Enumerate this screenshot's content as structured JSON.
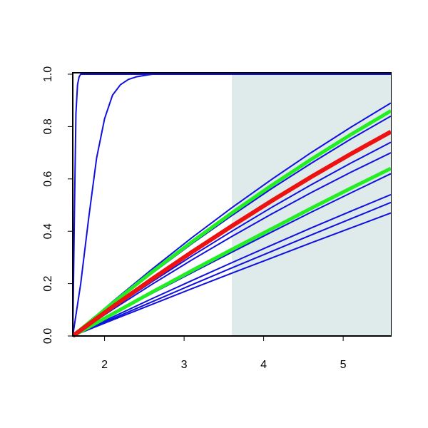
{
  "chart_data": {
    "type": "line",
    "xlim": [
      1.6,
      5.6
    ],
    "ylim": [
      0,
      1
    ],
    "xticks": [
      2,
      3,
      4,
      5
    ],
    "yticks": [
      {
        "value": 0,
        "label": "0.0"
      },
      {
        "value": 0.2,
        "label": "0.2"
      },
      {
        "value": 0.4,
        "label": "0.4"
      },
      {
        "value": 0.6,
        "label": "0.6"
      },
      {
        "value": 0.8,
        "label": "0.8"
      },
      {
        "value": 1,
        "label": "1.0"
      }
    ],
    "shaded_xrange": [
      3.6,
      5.6
    ],
    "shade_color": "#dfeaea",
    "series": [
      {
        "color": "#1010e0",
        "width": 2,
        "x": [
          1.6,
          1.62,
          1.64,
          1.66,
          1.68,
          1.7,
          1.75,
          1.8,
          5.6
        ],
        "values": [
          0,
          0.45,
          0.85,
          0.96,
          0.99,
          1.0,
          1.0,
          1.0,
          1.0
        ]
      },
      {
        "color": "#1010e0",
        "width": 2,
        "x": [
          1.6,
          1.7,
          1.8,
          1.9,
          2.0,
          2.1,
          2.2,
          2.3,
          2.4,
          2.6,
          2.8,
          5.6
        ],
        "values": [
          0,
          0.2,
          0.45,
          0.68,
          0.83,
          0.92,
          0.96,
          0.98,
          0.99,
          1.0,
          1.0,
          1.0
        ]
      },
      {
        "color": "#1010e0",
        "width": 2,
        "x": [
          1.6,
          2.1,
          2.6,
          3.1,
          3.6,
          4.1,
          4.6,
          5.1,
          5.6
        ],
        "values": [
          0,
          0.131,
          0.256,
          0.376,
          0.49,
          0.598,
          0.701,
          0.798,
          0.89
        ]
      },
      {
        "color": "#1010e0",
        "width": 2,
        "x": [
          1.6,
          2.1,
          2.6,
          3.1,
          3.6,
          4.1,
          4.6,
          5.1,
          5.6
        ],
        "values": [
          0,
          0.123,
          0.24,
          0.353,
          0.46,
          0.563,
          0.66,
          0.753,
          0.84
        ]
      },
      {
        "color": "#1010e0",
        "width": 2,
        "x": [
          1.6,
          2.1,
          2.6,
          3.1,
          3.6,
          4.1,
          4.6,
          5.1,
          5.6
        ],
        "values": [
          0,
          0.106,
          0.208,
          0.306,
          0.4,
          0.491,
          0.578,
          0.661,
          0.74
        ]
      },
      {
        "color": "#1010e0",
        "width": 2,
        "x": [
          1.6,
          2.1,
          2.6,
          3.1,
          3.6,
          4.1,
          4.6,
          5.1,
          5.6
        ],
        "values": [
          0,
          0.101,
          0.198,
          0.291,
          0.38,
          0.466,
          0.548,
          0.626,
          0.7
        ]
      },
      {
        "color": "#1010e0",
        "width": 2,
        "x": [
          1.6,
          2.1,
          2.6,
          3.1,
          3.6,
          4.1,
          4.6,
          5.1,
          5.6
        ],
        "values": [
          0,
          0.082,
          0.163,
          0.242,
          0.32,
          0.397,
          0.473,
          0.547,
          0.62
        ]
      },
      {
        "color": "#1010e0",
        "width": 2,
        "x": [
          1.6,
          2.1,
          2.6,
          3.1,
          3.6,
          4.1,
          4.6,
          5.1,
          5.6
        ],
        "values": [
          0,
          0.072,
          0.143,
          0.212,
          0.28,
          0.347,
          0.413,
          0.477,
          0.54
        ]
      },
      {
        "color": "#1010e0",
        "width": 2,
        "x": [
          1.6,
          2.1,
          2.6,
          3.1,
          3.6,
          4.1,
          4.6,
          5.1,
          5.6
        ],
        "values": [
          0,
          0.066,
          0.131,
          0.196,
          0.26,
          0.323,
          0.386,
          0.448,
          0.51
        ]
      },
      {
        "color": "#1010e0",
        "width": 2,
        "x": [
          1.6,
          2.1,
          2.6,
          3.1,
          3.6,
          4.1,
          4.6,
          5.1,
          5.6
        ],
        "values": [
          0,
          0.061,
          0.121,
          0.181,
          0.24,
          0.298,
          0.356,
          0.413,
          0.47
        ]
      },
      {
        "color": "#22ee22",
        "width": 5,
        "x": [
          1.6,
          2.1,
          2.6,
          3.1,
          3.6,
          4.1,
          4.6,
          5.1,
          5.6
        ],
        "values": [
          0,
          0.125,
          0.245,
          0.36,
          0.47,
          0.575,
          0.675,
          0.77,
          0.86
        ]
      },
      {
        "color": "#22ee22",
        "width": 5,
        "x": [
          1.6,
          2.1,
          2.6,
          3.1,
          3.6,
          4.1,
          4.6,
          5.1,
          5.6
        ],
        "values": [
          0,
          0.084,
          0.168,
          0.25,
          0.33,
          0.409,
          0.488,
          0.565,
          0.64
        ]
      },
      {
        "color": "#ee1111",
        "width": 6,
        "x": [
          1.6,
          2.1,
          2.6,
          3.1,
          3.6,
          4.1,
          4.6,
          5.1,
          5.6
        ],
        "values": [
          0,
          0.111,
          0.218,
          0.321,
          0.42,
          0.516,
          0.608,
          0.696,
          0.78
        ]
      }
    ]
  }
}
